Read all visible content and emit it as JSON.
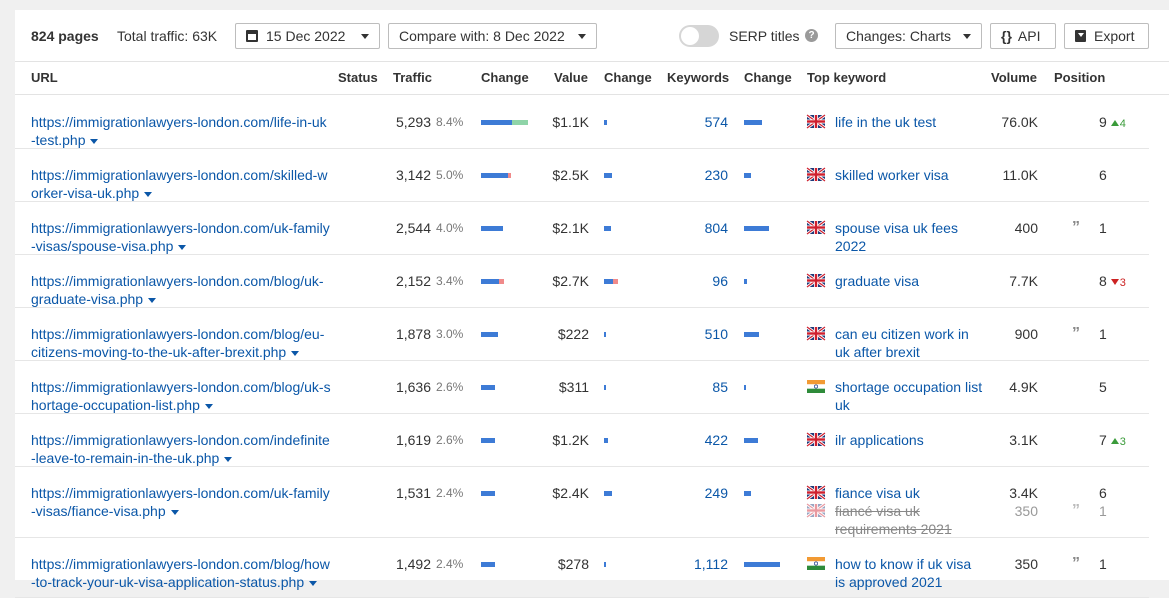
{
  "toolbar": {
    "pages": "824 pages",
    "total_traffic": "Total traffic: 63K",
    "date": "15 Dec 2022",
    "compare": "Compare with: 8 Dec 2022",
    "serp_titles": "SERP titles",
    "help": "?",
    "changes": "Changes: Charts",
    "api_braces": "{}",
    "api": "API",
    "export": "Export"
  },
  "columns": {
    "url": "URL",
    "status": "Status",
    "traffic": "Traffic",
    "change": "Change",
    "value": "Value",
    "value_change": "Change",
    "keywords": "Keywords",
    "keywords_change": "Change",
    "top_keyword": "Top keyword",
    "volume": "Volume",
    "position": "Position"
  },
  "colors": {
    "link": "#0b57a8",
    "bar_blue": "#3d7bd6",
    "bar_green": "#8fd4a8",
    "bar_red": "#f08a8a",
    "flag_uk": "uk",
    "flag_in": "in"
  },
  "rows": [
    {
      "url": "https://immigrationlawyers-london.com/life-in-uk-test.php",
      "traffic": "5,293",
      "pct": "8.4%",
      "value": "$1.1K",
      "keywords": "574",
      "flag": "uk",
      "kw": "life in the uk test",
      "volume": "76.0K",
      "position": "9",
      "delta": "4",
      "delta_dir": "up",
      "quote": false
    },
    {
      "url": "https://immigrationlawyers-london.com/skilled-worker-visa-uk.php",
      "traffic": "3,142",
      "pct": "5.0%",
      "value": "$2.5K",
      "keywords": "230",
      "flag": "uk",
      "kw": "skilled worker visa",
      "volume": "11.0K",
      "position": "6",
      "delta": "",
      "delta_dir": "",
      "quote": false
    },
    {
      "url": "https://immigrationlawyers-london.com/uk-family-visas/spouse-visa.php",
      "traffic": "2,544",
      "pct": "4.0%",
      "value": "$2.1K",
      "keywords": "804",
      "flag": "uk",
      "kw": "spouse visa uk fees 2022",
      "volume": "400",
      "position": "1",
      "delta": "",
      "delta_dir": "",
      "quote": true
    },
    {
      "url": "https://immigrationlawyers-london.com/blog/uk-graduate-visa.php",
      "traffic": "2,152",
      "pct": "3.4%",
      "value": "$2.7K",
      "keywords": "96",
      "flag": "uk",
      "kw": "graduate visa",
      "volume": "7.7K",
      "position": "8",
      "delta": "3",
      "delta_dir": "down",
      "quote": false
    },
    {
      "url": "https://immigrationlawyers-london.com/blog/eu-citizens-moving-to-the-uk-after-brexit.php",
      "traffic": "1,878",
      "pct": "3.0%",
      "value": "$222",
      "keywords": "510",
      "flag": "uk",
      "kw": "can eu citizen work in uk after brexit",
      "volume": "900",
      "position": "1",
      "delta": "",
      "delta_dir": "",
      "quote": true
    },
    {
      "url": "https://immigrationlawyers-london.com/blog/uk-shortage-occupation-list.php",
      "traffic": "1,636",
      "pct": "2.6%",
      "value": "$311",
      "keywords": "85",
      "flag": "in",
      "kw": "shortage occupation list uk",
      "volume": "4.9K",
      "position": "5",
      "delta": "",
      "delta_dir": "",
      "quote": false
    },
    {
      "url": "https://immigrationlawyers-london.com/indefinite-leave-to-remain-in-the-uk.php",
      "traffic": "1,619",
      "pct": "2.6%",
      "value": "$1.2K",
      "keywords": "422",
      "flag": "uk",
      "kw": "ilr applications",
      "volume": "3.1K",
      "position": "7",
      "delta": "3",
      "delta_dir": "up",
      "quote": false
    },
    {
      "url": "https://immigrationlawyers-london.com/uk-family-visas/fiance-visa.php",
      "traffic": "1,531",
      "pct": "2.4%",
      "value": "$2.4K",
      "keywords": "249",
      "flag": "uk",
      "kw": "fiance visa uk",
      "volume": "3.4K",
      "position": "6",
      "delta": "",
      "delta_dir": "",
      "quote": false,
      "old": {
        "flag": "uk",
        "kw": "fiancé visa uk requirements 2021",
        "volume": "350",
        "position": "1",
        "quote": true
      }
    },
    {
      "url": "https://immigrationlawyers-london.com/blog/how-to-track-your-uk-visa-application-status.php",
      "traffic": "1,492",
      "pct": "2.4%",
      "value": "$278",
      "keywords": "1,112",
      "flag": "in",
      "kw": "how to know if uk visa is approved 2021",
      "volume": "350",
      "position": "1",
      "delta": "",
      "delta_dir": "",
      "quote": true
    }
  ]
}
